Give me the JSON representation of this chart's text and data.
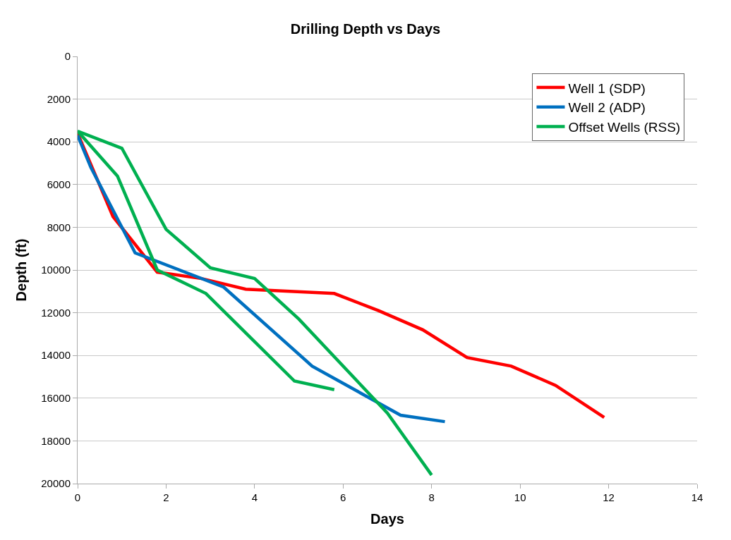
{
  "chart_data": {
    "type": "line",
    "title": "Drilling Depth vs Days",
    "xlabel": "Days",
    "ylabel": "Depth (ft)",
    "xlim": [
      0,
      14
    ],
    "xticks": [
      0,
      2,
      4,
      6,
      8,
      10,
      12,
      14
    ],
    "ylim": [
      20000,
      0
    ],
    "yticks": [
      0,
      2000,
      4000,
      6000,
      8000,
      10000,
      12000,
      14000,
      16000,
      18000,
      20000
    ],
    "grid": "y",
    "legend": "top right",
    "marker": "none",
    "line_style": "solid",
    "series": [
      {
        "name": "Well 1 (SDP)",
        "color": "#ff0000",
        "x": [
          0,
          0.8,
          1.8,
          2.8,
          3.8,
          5.8,
          6.8,
          7.8,
          8.8,
          9.8,
          10.8,
          11.9
        ],
        "values": [
          3600,
          7500,
          10100,
          10400,
          10900,
          11100,
          11900,
          12800,
          14100,
          14500,
          15400,
          16900
        ]
      },
      {
        "name": "Well 2 (ADP)",
        "color": "#0070c0",
        "x": [
          0,
          0.3,
          1.3,
          3.3,
          5.3,
          7.3,
          8.3
        ],
        "values": [
          3700,
          5200,
          9200,
          10800,
          14500,
          16800,
          17100
        ]
      },
      {
        "name": "Offset Wells (RSS)",
        "color": "#00b050",
        "x": [
          0,
          1,
          2,
          3,
          4,
          5,
          7,
          8,
          null,
          0,
          0.9,
          1.8,
          2.9,
          4.9,
          5.8
        ],
        "values": [
          3500,
          4300,
          8100,
          9900,
          10400,
          12300,
          16700,
          19600,
          null,
          3500,
          5600,
          10000,
          11100,
          15200,
          15600
        ]
      }
    ]
  }
}
